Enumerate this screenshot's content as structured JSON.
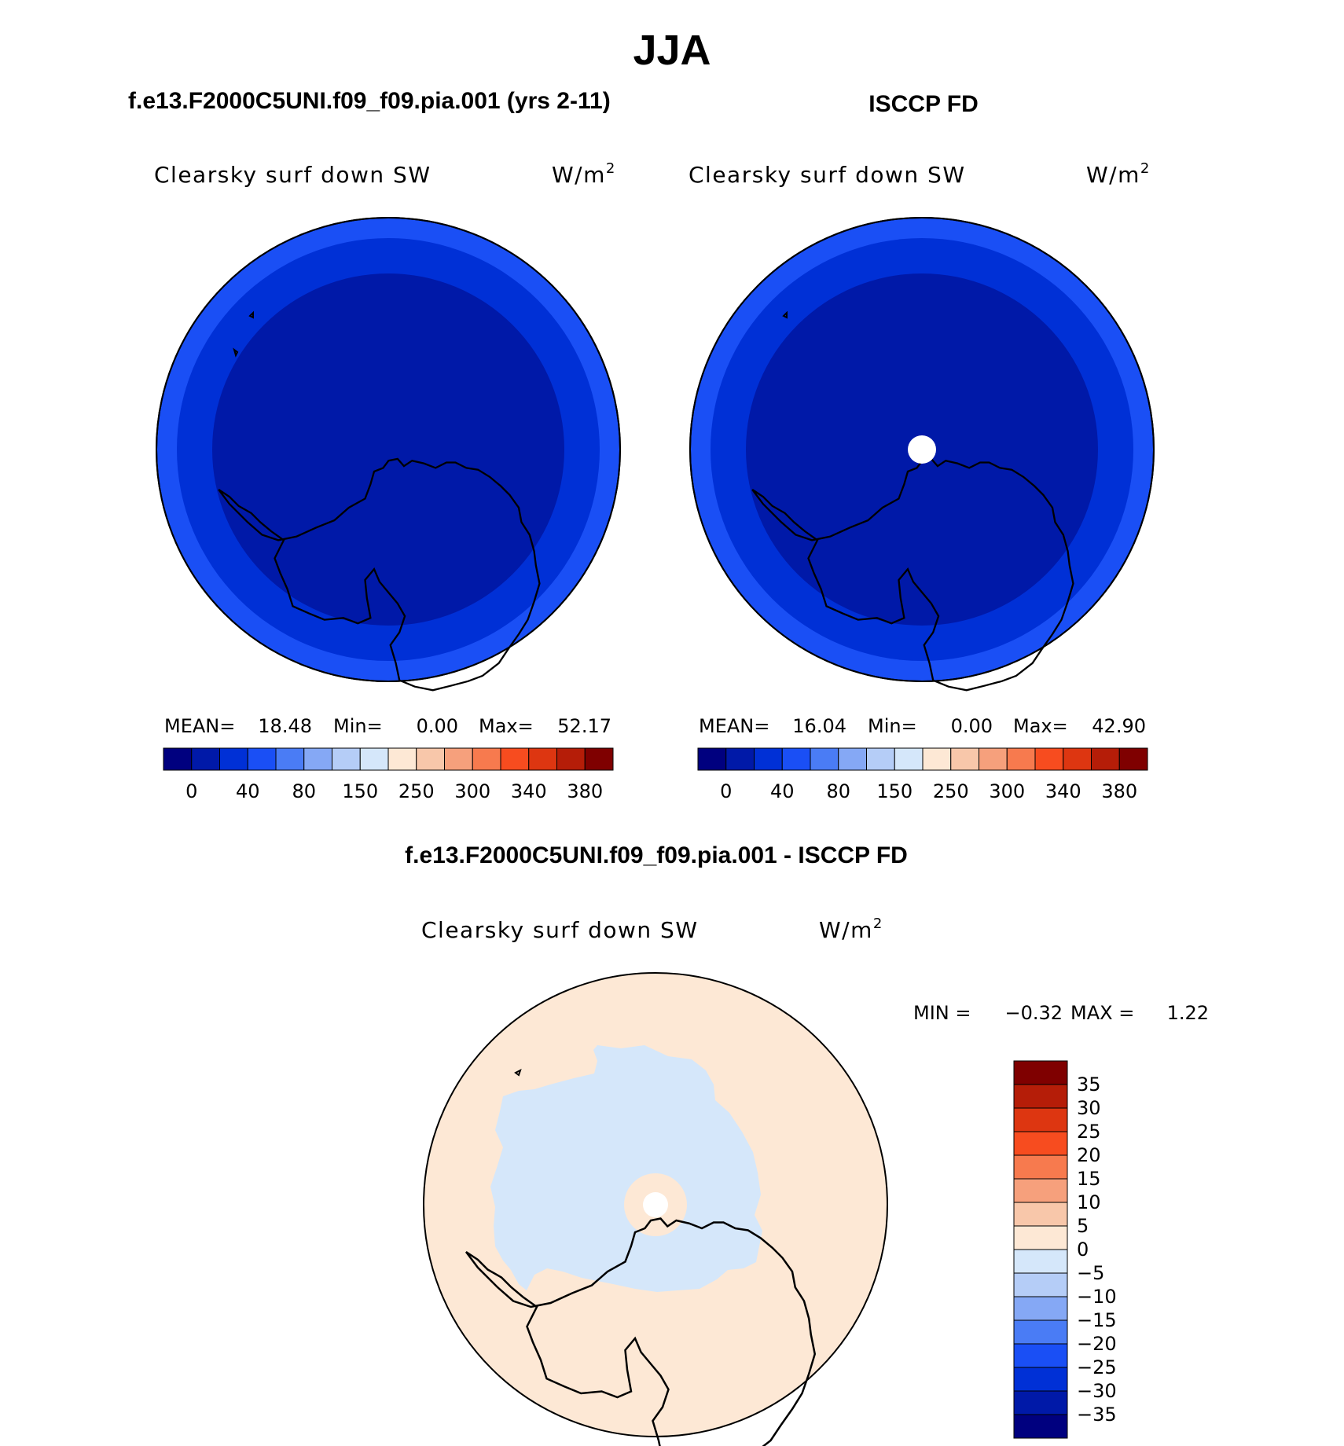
{
  "title": "JJA",
  "panels": {
    "model": {
      "heading": "f.e13.F2000C5UNI.f09_f09.pia.001 (yrs 2-11)",
      "variable": "Clearsky surf down SW",
      "units": "W/m",
      "units_sup": "2",
      "stats": {
        "mean_label": "MEAN=",
        "mean": "18.48",
        "min_label": "Min=",
        "min": "0.00",
        "max_label": "Max=",
        "max": "52.17"
      }
    },
    "obs": {
      "heading": "ISCCP FD",
      "variable": "Clearsky surf down SW",
      "units": "W/m",
      "units_sup": "2",
      "stats": {
        "mean_label": "MEAN=",
        "mean": "16.04",
        "min_label": "Min=",
        "min": "0.00",
        "max_label": "Max=",
        "max": "42.90"
      }
    },
    "diff": {
      "heading": "f.e13.F2000C5UNI.f09_f09.pia.001 - ISCCP FD",
      "variable": "Clearsky surf down SW",
      "units": "W/m",
      "units_sup": "2",
      "stats": {
        "min_label": "MIN =",
        "min": "−0.32",
        "max_label": "MAX =",
        "max": "1.22"
      }
    }
  },
  "colorbar_abs": {
    "colors": [
      "#00007f",
      "#0019a8",
      "#0030d6",
      "#1a4ff5",
      "#4a7cf5",
      "#85a8f5",
      "#b5cdf7",
      "#d5e7fa",
      "#fde8d5",
      "#f8c7aa",
      "#f6a07c",
      "#f77a4e",
      "#f74c1f",
      "#dd3611",
      "#b51d08",
      "#7f0000"
    ],
    "labels": [
      "0",
      "40",
      "80",
      "150",
      "250",
      "300",
      "340",
      "380"
    ]
  },
  "colorbar_diff": {
    "colors_top_to_bottom": [
      "#7f0000",
      "#b51d08",
      "#dd3611",
      "#f74c1f",
      "#f77a4e",
      "#f6a07c",
      "#f8c7aa",
      "#fde8d5",
      "#d5e7fa",
      "#b5cdf7",
      "#85a8f5",
      "#4a7cf5",
      "#1a4ff5",
      "#0030d6",
      "#0019a8",
      "#00007f"
    ],
    "labels": [
      "35",
      "30",
      "25",
      "20",
      "15",
      "10",
      "5",
      "0",
      "−5",
      "−10",
      "−15",
      "−20",
      "−25",
      "−30",
      "−35"
    ]
  },
  "map_colors": {
    "outer_ring": "#1a4ff5",
    "mid_ring": "#0030d6",
    "inner": "#0019a8",
    "diff_positive": "#fde8d5",
    "diff_negative": "#d5e7fa",
    "missing": "#ffffff"
  }
}
